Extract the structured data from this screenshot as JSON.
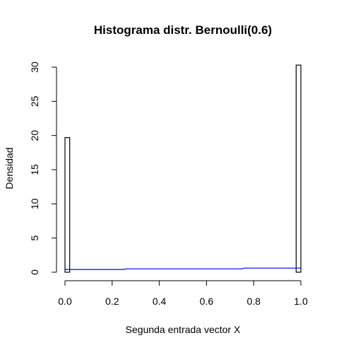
{
  "chart_data": {
    "type": "bar",
    "title": "Histograma distr. Bernoulli(0.6)",
    "xlabel": "Segunda entrada vector X",
    "ylabel": "Densidad",
    "xlim": [
      0,
      1
    ],
    "ylim": [
      0,
      30
    ],
    "x_ticks": [
      "0.0",
      "0.2",
      "0.4",
      "0.6",
      "0.8",
      "1.0"
    ],
    "x_tick_values": [
      0,
      0.2,
      0.4,
      0.6,
      0.8,
      1.0
    ],
    "y_ticks": [
      "0",
      "5",
      "10",
      "15",
      "20",
      "25",
      "30"
    ],
    "y_tick_values": [
      0,
      5,
      10,
      15,
      20,
      25,
      30
    ],
    "bins": [
      {
        "start": 0.0,
        "end": 0.02,
        "density": 19.7
      },
      {
        "start": 0.02,
        "end": 0.98,
        "density": 0
      },
      {
        "start": 0.98,
        "end": 1.0,
        "density": 30.3
      }
    ],
    "density_curve": {
      "color": "#0000ff",
      "x": [
        0.0,
        0.25,
        0.26,
        0.75,
        0.76,
        1.0
      ],
      "y": [
        0.4,
        0.4,
        0.5,
        0.5,
        0.6,
        0.6
      ]
    },
    "grid": false
  }
}
